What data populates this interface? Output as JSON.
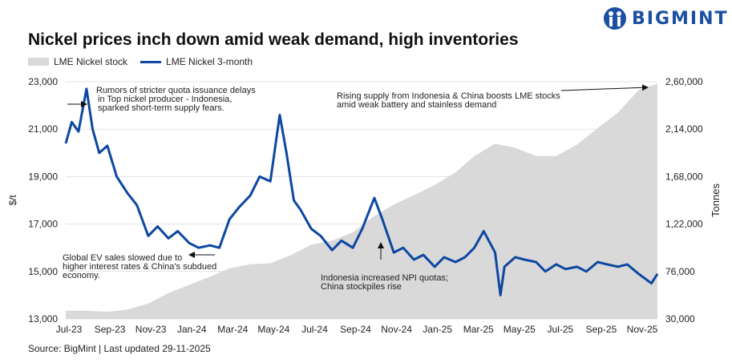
{
  "brand": {
    "name": "BIGMINT",
    "color": "#1a4fa3"
  },
  "chart_data": {
    "type": "line+area",
    "title": "Nickel prices inch down amid weak demand, high inventories",
    "source": "Source: BigMint | Last updated 29-11-2025",
    "legend": {
      "placement": "top-left",
      "entries": [
        "LME Nickel stock",
        "LME Nickel 3-month"
      ]
    },
    "ylabel_left": "$/t",
    "ylabel_right": "Tonnes",
    "ylim_left": [
      13000,
      23000
    ],
    "ylim_right": [
      30000,
      260000
    ],
    "yticks_left": [
      "13,000",
      "15,000",
      "17,000",
      "19,000",
      "21,000",
      "23,000"
    ],
    "yticks_right": [
      "30,000",
      "76,000",
      "1,22,000",
      "1,68,000",
      "2,14,000",
      "2,60,000"
    ],
    "xticks": [
      "Jul-23",
      "Sep-23",
      "Nov-23",
      "Jan-24",
      "Mar-24",
      "May-24",
      "Jul-24",
      "Sep-24",
      "Nov-24",
      "Jan-25",
      "Mar-25",
      "May-25",
      "Jul-25",
      "Sep-25",
      "Nov-25"
    ],
    "xlim": [
      "2023-07-01",
      "2025-11-29"
    ],
    "grid": "horizontal",
    "series": [
      {
        "name": "LME Nickel stock",
        "type": "area",
        "axis": "right",
        "color": "#d9d9d9",
        "x": [
          "2023-07-01",
          "2023-08-01",
          "2023-09-01",
          "2023-10-01",
          "2023-11-01",
          "2023-12-01",
          "2024-01-01",
          "2024-02-01",
          "2024-03-01",
          "2024-04-01",
          "2024-05-01",
          "2024-06-01",
          "2024-07-01",
          "2024-08-01",
          "2024-09-01",
          "2024-10-01",
          "2024-11-01",
          "2024-12-01",
          "2025-01-01",
          "2025-02-01",
          "2025-03-01",
          "2025-04-01",
          "2025-05-01",
          "2025-06-01",
          "2025-07-01",
          "2025-08-01",
          "2025-09-01",
          "2025-10-01",
          "2025-11-01",
          "2025-11-29"
        ],
        "values": [
          38000,
          38000,
          37000,
          39000,
          45000,
          55000,
          63000,
          71000,
          79000,
          83000,
          84000,
          92000,
          102000,
          106000,
          114000,
          129000,
          141000,
          150000,
          160000,
          172000,
          188000,
          200000,
          196000,
          188000,
          188000,
          199000,
          215000,
          230000,
          252000,
          258000
        ]
      },
      {
        "name": "LME Nickel 3-month",
        "type": "line",
        "axis": "left",
        "color": "#0d47a1",
        "x": [
          "2023-07-01",
          "2023-07-10",
          "2023-07-20",
          "2023-08-01",
          "2023-08-10",
          "2023-08-20",
          "2023-09-01",
          "2023-09-15",
          "2023-10-01",
          "2023-10-15",
          "2023-11-01",
          "2023-11-15",
          "2023-12-01",
          "2023-12-15",
          "2024-01-01",
          "2024-01-15",
          "2024-02-01",
          "2024-02-15",
          "2024-03-01",
          "2024-03-15",
          "2024-04-01",
          "2024-04-15",
          "2024-05-01",
          "2024-05-15",
          "2024-05-25",
          "2024-06-05",
          "2024-06-15",
          "2024-07-01",
          "2024-07-15",
          "2024-08-01",
          "2024-08-15",
          "2024-09-01",
          "2024-09-15",
          "2024-10-03",
          "2024-10-15",
          "2024-11-01",
          "2024-11-15",
          "2024-12-01",
          "2024-12-15",
          "2025-01-01",
          "2025-01-15",
          "2025-02-01",
          "2025-02-15",
          "2025-03-01",
          "2025-03-15",
          "2025-04-01",
          "2025-04-09",
          "2025-04-15",
          "2025-05-01",
          "2025-05-15",
          "2025-06-01",
          "2025-06-15",
          "2025-07-01",
          "2025-07-15",
          "2025-08-01",
          "2025-08-15",
          "2025-09-01",
          "2025-09-15",
          "2025-10-01",
          "2025-10-15",
          "2025-11-01",
          "2025-11-20",
          "2025-11-29"
        ],
        "values": [
          20400,
          21300,
          20900,
          22700,
          21000,
          20000,
          20300,
          19000,
          18300,
          17800,
          16500,
          16900,
          16400,
          16700,
          16200,
          16000,
          16100,
          16000,
          17200,
          17700,
          18200,
          19000,
          18800,
          21600,
          20000,
          18000,
          17600,
          16800,
          16500,
          15900,
          16300,
          16000,
          16800,
          18100,
          17200,
          15800,
          16000,
          15500,
          15700,
          15200,
          15600,
          15400,
          15600,
          16000,
          16700,
          15800,
          14000,
          15200,
          15600,
          15500,
          15400,
          15000,
          15300,
          15100,
          15200,
          15000,
          15400,
          15300,
          15200,
          15300,
          14900,
          14500,
          14900
        ]
      }
    ],
    "annotations": [
      {
        "text": [
          "Rumors of stricter quota issuance delays",
          "in Top nickel producer - Indonesia,",
          "sparked short-term supply fears."
        ]
      },
      {
        "text": [
          "Rising supply from Indonesia & China boosts LME stocks",
          "amid weak battery and stainless demand"
        ]
      },
      {
        "text": [
          "Global EV sales slowed due to",
          "higher interest rates & China's subdued",
          "economy."
        ]
      },
      {
        "text": [
          "Indonesia increased NPI quotas;",
          "China stockpiles rise"
        ]
      }
    ]
  }
}
